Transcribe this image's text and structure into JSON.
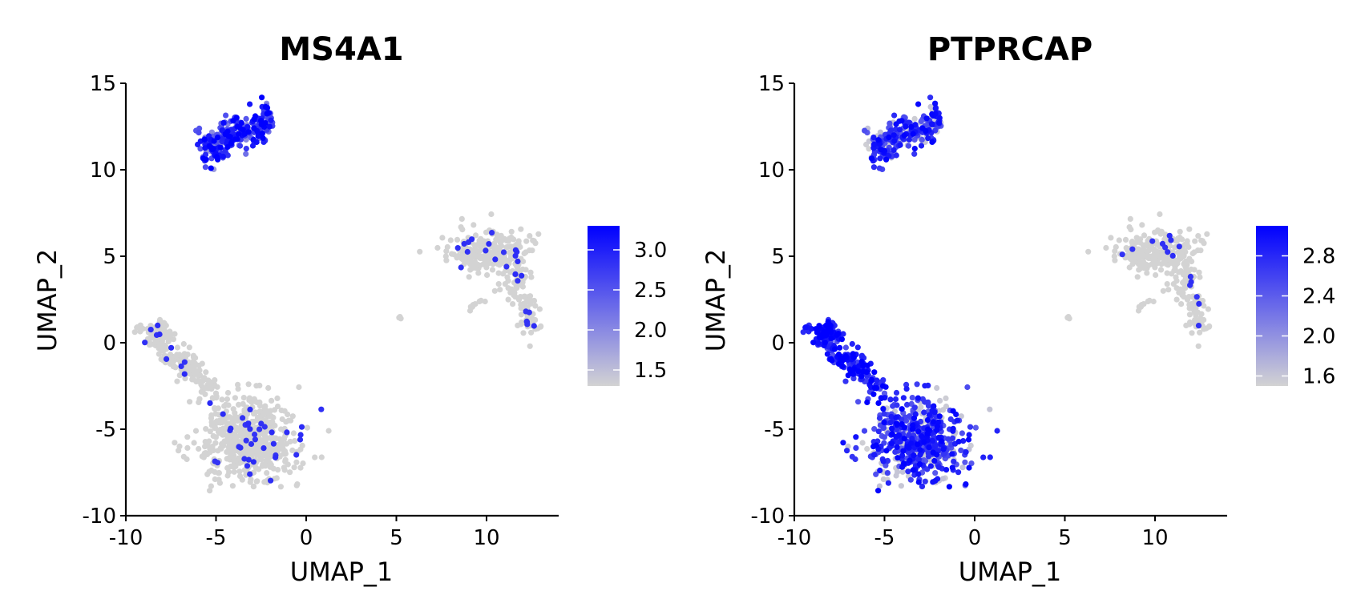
{
  "chart_data": [
    {
      "type": "scatter",
      "title": "MS4A1",
      "xlabel": "UMAP_1",
      "ylabel": "UMAP_2",
      "xlim": [
        -10,
        14
      ],
      "ylim": [
        -10,
        15
      ],
      "xticks": [
        "-10",
        "-5",
        "0",
        "5",
        "10"
      ],
      "yticks": [
        "-10",
        "-5",
        "0",
        "5",
        "10",
        "15"
      ],
      "colorbar": {
        "range": [
          1.3,
          3.3
        ],
        "ticks": [
          "1.5",
          "2.0",
          "2.5",
          "3.0"
        ],
        "low_color": "#d3d3d3",
        "high_color": "#0000ff"
      },
      "clusters": [
        {
          "id": "top",
          "cx": -3.9,
          "cy": 11.9,
          "expression": "high"
        },
        {
          "id": "right",
          "cx": 10.8,
          "cy": 3.5,
          "expression": "low"
        },
        {
          "id": "bottom-left",
          "cx": -4.0,
          "cy": -4.0,
          "expression": "low"
        },
        {
          "id": "small",
          "cx": 5.2,
          "cy": 1.4,
          "expression": "low"
        }
      ],
      "grid": false,
      "legend": "right"
    },
    {
      "type": "scatter",
      "title": "PTPRCAP",
      "xlabel": "UMAP_1",
      "ylabel": "UMAP_2",
      "xlim": [
        -10,
        14
      ],
      "ylim": [
        -10,
        15
      ],
      "xticks": [
        "-10",
        "-5",
        "0",
        "5",
        "10"
      ],
      "yticks": [
        "-10",
        "-5",
        "0",
        "5",
        "10",
        "15"
      ],
      "colorbar": {
        "range": [
          1.5,
          3.1
        ],
        "ticks": [
          "1.6",
          "2.0",
          "2.4",
          "2.8"
        ],
        "low_color": "#d3d3d3",
        "high_color": "#0000ff"
      },
      "clusters": [
        {
          "id": "top",
          "cx": -3.9,
          "cy": 11.9,
          "expression": "medium"
        },
        {
          "id": "right",
          "cx": 10.8,
          "cy": 3.5,
          "expression": "low"
        },
        {
          "id": "bottom-left",
          "cx": -4.0,
          "cy": -4.0,
          "expression": "medium-high"
        },
        {
          "id": "small",
          "cx": 5.2,
          "cy": 1.4,
          "expression": "low"
        }
      ],
      "grid": false,
      "legend": "right"
    }
  ]
}
